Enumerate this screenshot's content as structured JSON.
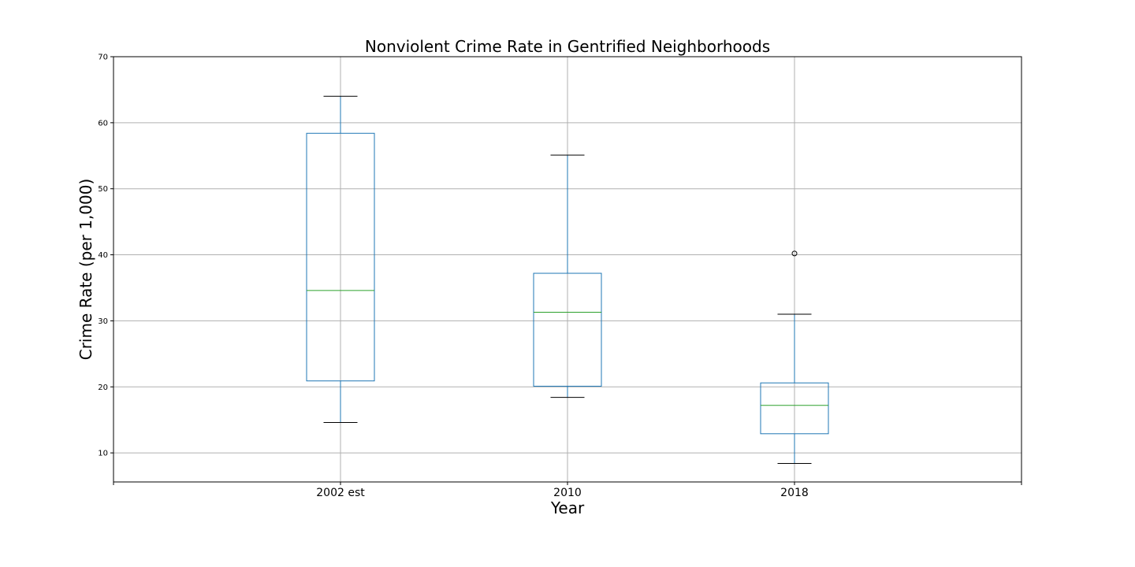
{
  "chart_data": {
    "type": "box",
    "title": "Nonviolent Crime Rate in Gentrified Neighborhoods",
    "xlabel": "Year",
    "ylabel": "Crime Rate (per 1,000)",
    "categories": [
      "2002 est",
      "2010",
      "2018"
    ],
    "boxes": [
      {
        "category": "2002 est",
        "whisker_low": 14.6,
        "q1": 20.9,
        "median": 34.6,
        "q3": 58.4,
        "whisker_high": 64.0,
        "outliers": []
      },
      {
        "category": "2010",
        "whisker_low": 18.4,
        "q1": 20.1,
        "median": 31.3,
        "q3": 37.2,
        "whisker_high": 55.1,
        "outliers": []
      },
      {
        "category": "2018",
        "whisker_low": 8.4,
        "q1": 12.9,
        "median": 17.2,
        "q3": 20.6,
        "whisker_high": 31.0,
        "outliers": [
          40.2
        ]
      }
    ],
    "ylim": [
      5.6,
      70
    ],
    "yticks": [
      10,
      20,
      30,
      40,
      50,
      60,
      70
    ],
    "yticks_labels": [
      "10",
      "20",
      "30",
      "40",
      "50",
      "60",
      "70"
    ],
    "grid": true,
    "colors": {
      "box": "#1f77b4",
      "median": "#2ca02c",
      "whisker_cap": "#000000",
      "grid": "#b0b0b0"
    }
  }
}
